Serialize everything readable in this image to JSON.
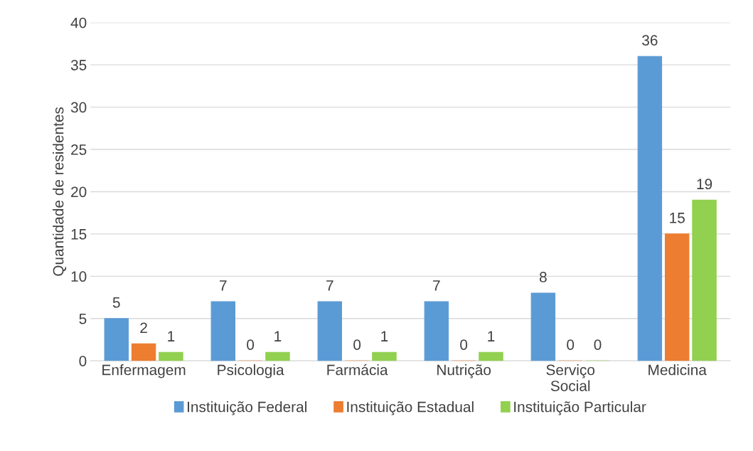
{
  "chart_data": {
    "type": "bar",
    "ylabel": "Quantidade de residentes",
    "categories": [
      "Enfermagem",
      "Psicologia",
      "Farmácia",
      "Nutrição",
      "Serviço\nSocial",
      "Medicina"
    ],
    "series": [
      {
        "name": "Instituição Federal",
        "color": "#5b9bd5",
        "values": [
          5,
          7,
          7,
          7,
          8,
          36
        ]
      },
      {
        "name": "Instituição Estadual",
        "color": "#ed7d31",
        "values": [
          2,
          0,
          0,
          0,
          0,
          15
        ]
      },
      {
        "name": "Instituição Particular",
        "color": "#92d050",
        "values": [
          1,
          1,
          1,
          1,
          0,
          19
        ]
      }
    ],
    "ylim": [
      0,
      40
    ],
    "yticks": [
      0,
      5,
      10,
      15,
      20,
      25,
      30,
      35,
      40
    ],
    "grid": "y",
    "legend": "bottom",
    "data_labels": true
  }
}
